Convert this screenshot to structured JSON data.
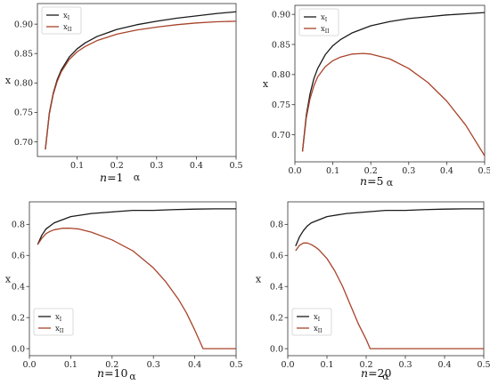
{
  "colors": {
    "xI": "#1a1a1a",
    "xII": "#a8432a",
    "frame": "#333333"
  },
  "chart_data": [
    {
      "type": "line",
      "subplot_label": "n=1",
      "xlabel": "α",
      "ylabel": "x",
      "xlim": [
        0,
        0.5
      ],
      "ylim": [
        0.675,
        0.935
      ],
      "xticks": [
        0.1,
        0.2,
        0.3,
        0.4,
        0.5
      ],
      "xtick_labels": [
        "0.1",
        "0.2",
        "0.3",
        "0.4",
        "0.5"
      ],
      "yticks": [
        0.7,
        0.75,
        0.8,
        0.85,
        0.9
      ],
      "ytick_labels": [
        "0.70",
        "0.75",
        "0.80",
        "0.85",
        "0.90"
      ],
      "grid": false,
      "legend": "top-left",
      "series": [
        {
          "name": "x",
          "sub": "I",
          "color": "#1a1a1a",
          "x": [
            0.02,
            0.03,
            0.04,
            0.05,
            0.06,
            0.08,
            0.1,
            0.12,
            0.15,
            0.2,
            0.25,
            0.3,
            0.35,
            0.4,
            0.45,
            0.5
          ],
          "y": [
            0.687,
            0.749,
            0.783,
            0.806,
            0.822,
            0.844,
            0.858,
            0.868,
            0.879,
            0.891,
            0.899,
            0.905,
            0.91,
            0.914,
            0.918,
            0.921
          ]
        },
        {
          "name": "x",
          "sub": "II",
          "color": "#a8432a",
          "x": [
            0.02,
            0.03,
            0.04,
            0.05,
            0.06,
            0.08,
            0.1,
            0.12,
            0.15,
            0.2,
            0.25,
            0.3,
            0.35,
            0.4,
            0.45,
            0.5
          ],
          "y": [
            0.687,
            0.747,
            0.781,
            0.803,
            0.819,
            0.84,
            0.853,
            0.862,
            0.872,
            0.883,
            0.89,
            0.895,
            0.899,
            0.902,
            0.904,
            0.905
          ]
        }
      ]
    },
    {
      "type": "line",
      "subplot_label": "n=5",
      "xlabel": "α",
      "ylabel": "x",
      "xlim": [
        0,
        0.5
      ],
      "ylim": [
        0.655,
        0.915
      ],
      "xticks": [
        0.0,
        0.1,
        0.2,
        0.3,
        0.4,
        0.5
      ],
      "xtick_labels": [
        "0.0",
        "0.1",
        "0.2",
        "0.3",
        "0.4",
        "0.5"
      ],
      "yticks": [
        0.7,
        0.75,
        0.8,
        0.85,
        0.9
      ],
      "ytick_labels": [
        "0.70",
        "0.75",
        "0.80",
        "0.85",
        "0.90"
      ],
      "grid": false,
      "legend": "top-left",
      "series": [
        {
          "name": "x",
          "sub": "I",
          "color": "#1a1a1a",
          "x": [
            0.02,
            0.03,
            0.04,
            0.05,
            0.06,
            0.08,
            0.1,
            0.12,
            0.15,
            0.2,
            0.25,
            0.3,
            0.35,
            0.4,
            0.45,
            0.5
          ],
          "y": [
            0.672,
            0.732,
            0.768,
            0.793,
            0.81,
            0.833,
            0.848,
            0.858,
            0.869,
            0.881,
            0.888,
            0.893,
            0.896,
            0.899,
            0.901,
            0.903
          ]
        },
        {
          "name": "x",
          "sub": "II",
          "color": "#a8432a",
          "x": [
            0.02,
            0.03,
            0.04,
            0.05,
            0.06,
            0.08,
            0.1,
            0.12,
            0.15,
            0.18,
            0.2,
            0.25,
            0.3,
            0.35,
            0.4,
            0.45,
            0.5
          ],
          "y": [
            0.672,
            0.728,
            0.76,
            0.781,
            0.796,
            0.813,
            0.823,
            0.829,
            0.834,
            0.835,
            0.834,
            0.826,
            0.81,
            0.787,
            0.756,
            0.716,
            0.665
          ]
        }
      ]
    },
    {
      "type": "line",
      "subplot_label": "n=10",
      "xlabel": "α",
      "ylabel": "x",
      "xlim": [
        0,
        0.5
      ],
      "ylim": [
        -0.045,
        0.945
      ],
      "xticks": [
        0.0,
        0.1,
        0.2,
        0.3,
        0.4,
        0.5
      ],
      "xtick_labels": [
        "0.0",
        "0.1",
        "0.2",
        "0.3",
        "0.4",
        "0.5"
      ],
      "yticks": [
        0.0,
        0.2,
        0.4,
        0.6,
        0.8
      ],
      "ytick_labels": [
        "0.0",
        "0.2",
        "0.4",
        "0.6",
        "0.8"
      ],
      "grid": false,
      "legend": "bottom-left",
      "series": [
        {
          "name": "x",
          "sub": "I",
          "color": "#1a1a1a",
          "x": [
            0.02,
            0.03,
            0.04,
            0.05,
            0.06,
            0.08,
            0.1,
            0.15,
            0.2,
            0.25,
            0.3,
            0.35,
            0.4,
            0.45,
            0.5
          ],
          "y": [
            0.67,
            0.73,
            0.77,
            0.79,
            0.81,
            0.83,
            0.85,
            0.87,
            0.88,
            0.89,
            0.89,
            0.895,
            0.898,
            0.9,
            0.9
          ]
        },
        {
          "name": "x",
          "sub": "II",
          "color": "#a8432a",
          "x": [
            0.02,
            0.03,
            0.04,
            0.05,
            0.06,
            0.08,
            0.1,
            0.12,
            0.15,
            0.2,
            0.25,
            0.3,
            0.33,
            0.36,
            0.38,
            0.4,
            0.41,
            0.42,
            0.45,
            0.5
          ],
          "y": [
            0.67,
            0.71,
            0.74,
            0.755,
            0.765,
            0.775,
            0.775,
            0.77,
            0.75,
            0.7,
            0.63,
            0.52,
            0.43,
            0.32,
            0.23,
            0.12,
            0.06,
            0.0,
            0.0,
            0.0
          ]
        }
      ]
    },
    {
      "type": "line",
      "subplot_label": "n=20",
      "xlabel": "α",
      "ylabel": "x",
      "xlim": [
        0,
        0.5
      ],
      "ylim": [
        -0.045,
        0.945
      ],
      "xticks": [
        0.0,
        0.1,
        0.2,
        0.3,
        0.4,
        0.5
      ],
      "xtick_labels": [
        "0.0",
        "0.1",
        "0.2",
        "0.3",
        "0.4",
        "0.5"
      ],
      "yticks": [
        0.0,
        0.2,
        0.4,
        0.6,
        0.8
      ],
      "ytick_labels": [
        "0.0",
        "0.2",
        "0.4",
        "0.6",
        "0.8"
      ],
      "grid": false,
      "legend": "bottom-left",
      "series": [
        {
          "name": "x",
          "sub": "I",
          "color": "#1a1a1a",
          "x": [
            0.02,
            0.03,
            0.04,
            0.05,
            0.06,
            0.08,
            0.1,
            0.15,
            0.2,
            0.25,
            0.3,
            0.35,
            0.4,
            0.45,
            0.5
          ],
          "y": [
            0.66,
            0.72,
            0.76,
            0.79,
            0.81,
            0.83,
            0.85,
            0.87,
            0.88,
            0.89,
            0.89,
            0.895,
            0.898,
            0.9,
            0.9
          ]
        },
        {
          "name": "x",
          "sub": "II",
          "color": "#a8432a",
          "x": [
            0.02,
            0.03,
            0.04,
            0.05,
            0.06,
            0.07,
            0.08,
            0.1,
            0.12,
            0.14,
            0.16,
            0.18,
            0.2,
            0.21,
            0.22,
            0.3,
            0.4,
            0.5
          ],
          "y": [
            0.63,
            0.665,
            0.68,
            0.68,
            0.67,
            0.655,
            0.635,
            0.58,
            0.5,
            0.4,
            0.28,
            0.16,
            0.06,
            0.0,
            0.0,
            0.0,
            0.0,
            0.0
          ]
        }
      ]
    }
  ]
}
